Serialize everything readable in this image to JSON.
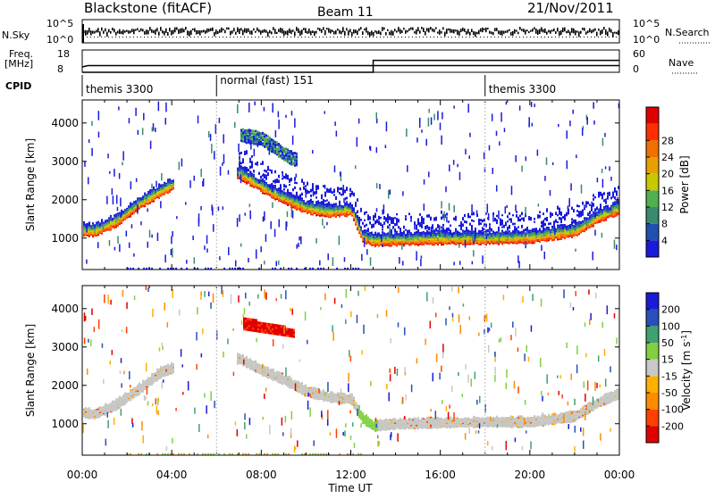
{
  "header": {
    "title": "Blackstone (fitACF)",
    "beam": "Beam 11",
    "date": "21/Nov/2011"
  },
  "nsky": {
    "label": "N.Sky",
    "right_label": "N.Search",
    "left_ticks": [
      "10^5",
      "10^0"
    ],
    "right_ticks": [
      "10^5",
      "10^0"
    ]
  },
  "freq": {
    "label_line1": "Freq.",
    "label_line2": "[MHz]",
    "right_label": "Nave",
    "left_ticks": [
      "18",
      "8"
    ],
    "right_ticks": [
      "60",
      "0"
    ],
    "freq_steps": [
      [
        0.0,
        10.4
      ],
      [
        0.25,
        11.0
      ],
      [
        13.0,
        11.0
      ],
      [
        24.0,
        11.0
      ]
    ],
    "nave_steps": [
      [
        0.0,
        0
      ],
      [
        13.0,
        0
      ],
      [
        13.0,
        32
      ],
      [
        24.0,
        32
      ]
    ]
  },
  "cpid": {
    "label": "CPID",
    "segments": [
      {
        "start": 0.0,
        "label": "themis 3300"
      },
      {
        "start": 6.0,
        "label": "normal (fast) 151"
      },
      {
        "start": 18.0,
        "label": "themis 3300"
      }
    ]
  },
  "x_axis": {
    "label": "Time UT",
    "ticks": [
      {
        "hour": 0,
        "label": "00:00"
      },
      {
        "hour": 4,
        "label": "04:00"
      },
      {
        "hour": 8,
        "label": "08:00"
      },
      {
        "hour": 12,
        "label": "12:00"
      },
      {
        "hour": 16,
        "label": "16:00"
      },
      {
        "hour": 20,
        "label": "20:00"
      },
      {
        "hour": 24,
        "label": "00:00"
      }
    ]
  },
  "chart_data": [
    {
      "type": "heatmap",
      "name": "power",
      "ylabel": "Slant Range [km]",
      "y_ticks": [
        1000,
        2000,
        3000,
        4000
      ],
      "xlim": [
        0,
        24
      ],
      "ylim": [
        180,
        4600
      ],
      "colorbar_label": "Power [dB]",
      "colorbar_ticks": [
        "4",
        "8",
        "12",
        "16",
        "20",
        "24",
        "28"
      ],
      "colors": [
        "#1a1adc",
        "#2050b0",
        "#3a8a70",
        "#50b050",
        "#c8c800",
        "#e8a000",
        "#f07000",
        "#ff3000",
        "#e00000"
      ],
      "main_band": [
        [
          0.0,
          1180
        ],
        [
          0.5,
          1150
        ],
        [
          1.5,
          1400
        ],
        [
          2.5,
          1850
        ],
        [
          3.5,
          2200
        ],
        [
          4.0,
          2350
        ],
        [
          7.0,
          2650
        ],
        [
          8.0,
          2300
        ],
        [
          9.0,
          2000
        ],
        [
          10.0,
          1750
        ],
        [
          11.0,
          1650
        ],
        [
          12.0,
          1700
        ],
        [
          12.5,
          1000
        ],
        [
          13.0,
          900
        ],
        [
          14.0,
          920
        ],
        [
          16.0,
          950
        ],
        [
          18.0,
          950
        ],
        [
          20.0,
          980
        ],
        [
          22.0,
          1150
        ],
        [
          23.0,
          1500
        ],
        [
          24.0,
          1750
        ]
      ],
      "upper_band": [
        [
          7.0,
          3700
        ],
        [
          8.0,
          3600
        ],
        [
          9.0,
          3200
        ],
        [
          9.5,
          3050
        ]
      ]
    },
    {
      "type": "heatmap",
      "name": "velocity",
      "ylabel": "Slant Range [km]",
      "y_ticks": [
        1000,
        2000,
        3000,
        4000
      ],
      "xlim": [
        0,
        24
      ],
      "ylim": [
        180,
        4600
      ],
      "colorbar_label": "Velocity [m s",
      "colorbar_label_sup": "-1",
      "colorbar_label_end": "]",
      "colorbar_ticks": [
        "-200",
        "-100",
        "-50",
        "-15",
        "15",
        "50",
        "100",
        "200"
      ],
      "colors": [
        "#e00000",
        "#ff4000",
        "#ff8c00",
        "#ffb000",
        "#c8c8c8",
        "#80d040",
        "#40a070",
        "#2850b8",
        "#1a1ad8"
      ],
      "main_band": [
        [
          0.0,
          1250
        ],
        [
          0.5,
          1200
        ],
        [
          1.5,
          1450
        ],
        [
          2.5,
          1850
        ],
        [
          3.5,
          2300
        ],
        [
          4.0,
          2400
        ],
        [
          7.0,
          2650
        ],
        [
          8.0,
          2350
        ],
        [
          9.0,
          2100
        ],
        [
          10.0,
          1800
        ],
        [
          11.0,
          1650
        ],
        [
          12.0,
          1600
        ],
        [
          12.5,
          1100
        ],
        [
          13.0,
          900
        ],
        [
          14.0,
          950
        ],
        [
          16.0,
          980
        ],
        [
          18.0,
          1000
        ],
        [
          20.0,
          1000
        ],
        [
          22.0,
          1150
        ],
        [
          23.0,
          1500
        ],
        [
          24.0,
          1750
        ]
      ],
      "red_patch": [
        7.2,
        3300,
        9.5,
        3800
      ]
    }
  ]
}
